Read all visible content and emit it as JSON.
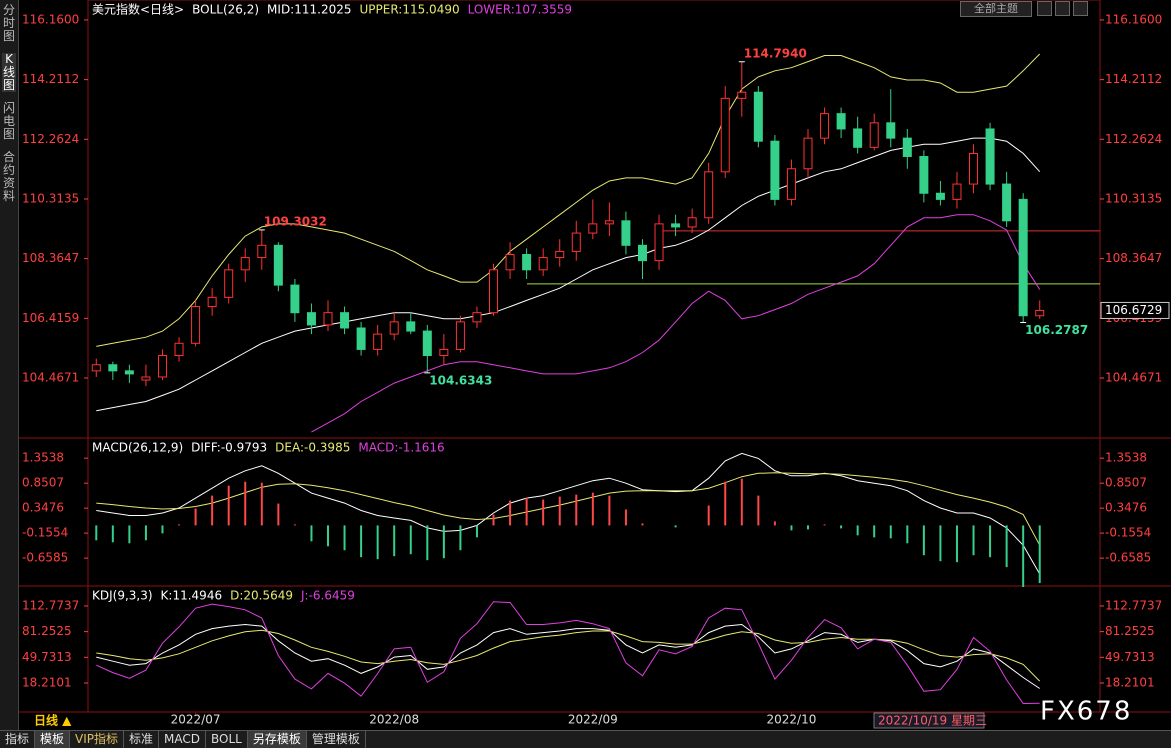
{
  "ui": {
    "side_tabs": [
      "分时图",
      "K线图",
      "闪电图",
      "合约资料"
    ],
    "toolbar_select": "全部主题",
    "period": "日线 ▲",
    "crosshair_date": "2022/10/19 星期三",
    "watermark": "FX678",
    "bottom_tabs": [
      "指标",
      "模板",
      "VIP指标",
      "标准",
      "MACD",
      "BOLL",
      "另存模板",
      "管理模板"
    ]
  },
  "chart_data": [
    {
      "type": "candlestick",
      "title": "美元指数<日线>",
      "indicator": "BOLL(26,2)",
      "up_color": "#ff3232",
      "down_color": "#35d08a",
      "grid": false,
      "last_price_label": true,
      "ylim": [
        102.54,
        116.55
      ],
      "yticks": [
        {
          "value": 116.16,
          "label": "116.1600"
        },
        114.2112,
        112.2624,
        110.3135,
        108.3647,
        106.4159,
        104.4671
      ],
      "categories": [
        null,
        null,
        null,
        null,
        null,
        null,
        "2022/07",
        null,
        null,
        null,
        null,
        null,
        null,
        null,
        null,
        null,
        null,
        null,
        "2022/08",
        null,
        null,
        null,
        null,
        null,
        null,
        null,
        null,
        null,
        null,
        null,
        "2022/09",
        null,
        null,
        null,
        null,
        null,
        null,
        null,
        null,
        null,
        null,
        null,
        "2022/10",
        null,
        null,
        null,
        null,
        null,
        null,
        null,
        null,
        null,
        null,
        null,
        null,
        null,
        null,
        null
      ],
      "open": [
        104.7,
        104.9,
        104.7,
        104.4,
        104.5,
        105.2,
        105.6,
        106.8,
        107.1,
        108.0,
        108.4,
        108.8,
        107.5,
        106.6,
        106.2,
        106.6,
        106.1,
        105.4,
        105.9,
        106.3,
        106.0,
        105.2,
        105.4,
        106.3,
        106.6,
        108.0,
        108.5,
        108.0,
        108.4,
        108.6,
        109.2,
        109.5,
        109.6,
        108.8,
        108.3,
        109.5,
        109.4,
        109.7,
        111.2,
        113.6,
        113.8,
        112.2,
        110.3,
        111.3,
        112.3,
        113.1,
        112.6,
        112.0,
        112.8,
        112.3,
        111.7,
        110.5,
        110.3,
        110.8,
        112.6,
        110.8,
        110.3,
        106.5
      ],
      "high": [
        105.1,
        105.0,
        104.9,
        104.9,
        105.4,
        105.8,
        107.0,
        107.4,
        108.2,
        108.7,
        109.3032,
        108.9,
        107.7,
        106.9,
        107.0,
        106.8,
        106.3,
        106.2,
        106.6,
        106.6,
        106.2,
        105.9,
        106.5,
        106.8,
        108.2,
        108.9,
        108.7,
        108.7,
        109.0,
        109.6,
        110.3,
        110.2,
        109.9,
        109.0,
        109.8,
        109.8,
        110.0,
        111.5,
        114.0,
        114.794,
        114.0,
        112.4,
        111.6,
        112.6,
        113.3,
        113.3,
        113.0,
        113.1,
        113.9,
        112.6,
        111.9,
        110.9,
        111.2,
        112.1,
        112.8,
        111.2,
        110.5,
        107.0
      ],
      "low": [
        104.5,
        104.4,
        104.3,
        104.2,
        104.4,
        105.0,
        105.5,
        106.5,
        106.9,
        107.6,
        108.0,
        107.3,
        106.3,
        105.9,
        106.0,
        105.9,
        105.2,
        105.2,
        105.7,
        105.9,
        104.6343,
        104.9,
        105.3,
        106.1,
        106.5,
        107.7,
        107.7,
        107.8,
        108.1,
        108.3,
        109.0,
        109.1,
        108.5,
        107.7,
        108.0,
        109.1,
        109.2,
        109.5,
        111.0,
        113.0,
        112.0,
        110.1,
        110.1,
        111.0,
        112.1,
        112.3,
        111.8,
        111.9,
        112.0,
        111.3,
        110.2,
        110.1,
        110.0,
        110.5,
        110.6,
        109.4,
        106.2787,
        106.4
      ],
      "close": [
        104.9,
        104.7,
        104.6,
        104.5,
        105.2,
        105.6,
        106.8,
        107.1,
        108.0,
        108.4,
        108.8,
        107.5,
        106.6,
        106.2,
        106.6,
        106.1,
        105.4,
        105.9,
        106.3,
        106.0,
        105.2,
        105.4,
        106.3,
        106.6,
        108.0,
        108.5,
        108.0,
        108.4,
        108.6,
        109.2,
        109.5,
        109.6,
        108.8,
        108.3,
        109.5,
        109.4,
        109.7,
        111.2,
        113.6,
        113.8,
        112.2,
        110.3,
        111.3,
        112.3,
        113.1,
        112.6,
        112.0,
        112.8,
        112.3,
        111.7,
        110.5,
        110.3,
        110.8,
        111.8,
        110.8,
        109.6,
        106.5,
        106.6729
      ],
      "series": [
        {
          "name": "MID:111.2025",
          "color": "#ffffff",
          "values": [
            103.4,
            103.5,
            103.6,
            103.7,
            103.9,
            104.1,
            104.4,
            104.7,
            105.0,
            105.3,
            105.6,
            105.8,
            106.0,
            106.1,
            106.2,
            106.3,
            106.4,
            106.5,
            106.6,
            106.6,
            106.5,
            106.4,
            106.4,
            106.5,
            106.6,
            106.8,
            107.0,
            107.2,
            107.4,
            107.7,
            108.0,
            108.2,
            108.4,
            108.5,
            108.7,
            108.8,
            109.0,
            109.3,
            109.7,
            110.1,
            110.4,
            110.6,
            110.8,
            111.0,
            111.2,
            111.3,
            111.5,
            111.7,
            111.9,
            112.0,
            112.1,
            112.1,
            112.2,
            112.3,
            112.3,
            112.2,
            111.8,
            111.2025
          ]
        },
        {
          "name": "UPPER:115.0490",
          "color": "#e8e870",
          "values": [
            105.5,
            105.6,
            105.7,
            105.8,
            106.0,
            106.4,
            107.0,
            107.8,
            108.5,
            109.1,
            109.4,
            109.5,
            109.5,
            109.4,
            109.3,
            109.2,
            109.0,
            108.8,
            108.6,
            108.3,
            108.0,
            107.8,
            107.6,
            107.6,
            108.0,
            108.6,
            109.0,
            109.4,
            109.8,
            110.2,
            110.6,
            110.9,
            111.0,
            111.0,
            110.9,
            110.8,
            111.0,
            111.8,
            113.0,
            113.9,
            114.3,
            114.5,
            114.6,
            114.8,
            115.0,
            115.0,
            114.8,
            114.6,
            114.3,
            114.2,
            114.2,
            114.1,
            113.8,
            113.8,
            113.9,
            114.0,
            114.5,
            115.049
          ]
        },
        {
          "name": "LOWER:107.3559",
          "color": "#e040e0",
          "values": [
            null,
            null,
            null,
            null,
            null,
            null,
            null,
            null,
            null,
            null,
            null,
            null,
            null,
            102.7,
            103.0,
            103.3,
            103.7,
            104.0,
            104.3,
            104.5,
            104.7,
            104.9,
            105.0,
            105.0,
            104.9,
            104.8,
            104.7,
            104.6,
            104.6,
            104.6,
            104.7,
            104.8,
            105.0,
            105.3,
            105.7,
            106.3,
            106.9,
            107.3,
            107.0,
            106.4,
            106.5,
            106.7,
            106.9,
            107.2,
            107.4,
            107.6,
            107.8,
            108.2,
            108.8,
            109.4,
            109.7,
            109.7,
            109.8,
            109.8,
            109.6,
            109.3,
            108.2,
            107.3559
          ]
        }
      ],
      "annotations": [
        109.3032,
        {
          "value": 114.794,
          "label": "114.7940"
        },
        104.6343,
        106.2787
      ],
      "hlines": [
        {
          "value": 109.27,
          "color": "#e03030"
        },
        {
          "value": 107.54,
          "color": "#a0e040"
        }
      ]
    },
    {
      "type": "macd",
      "title": "MACD(26,12,9)",
      "ylim": [
        -1.2,
        1.72
      ],
      "yticks": [
        1.3538,
        0.8507,
        0.3476,
        -0.1554,
        -0.6585
      ],
      "series": [
        {
          "name": "DIFF:-0.9793",
          "color": "#ffffff",
          "style": "line",
          "values": [
            0.3,
            0.25,
            0.2,
            0.2,
            0.25,
            0.35,
            0.55,
            0.75,
            0.95,
            1.1,
            1.2,
            1.05,
            0.85,
            0.65,
            0.55,
            0.45,
            0.3,
            0.2,
            0.15,
            0.1,
            -0.05,
            -0.12,
            -0.1,
            0.0,
            0.25,
            0.45,
            0.55,
            0.6,
            0.7,
            0.8,
            0.9,
            0.95,
            0.85,
            0.72,
            0.7,
            0.68,
            0.7,
            0.95,
            1.3,
            1.45,
            1.35,
            1.1,
            1.0,
            1.0,
            1.05,
            1.0,
            0.9,
            0.85,
            0.8,
            0.7,
            0.5,
            0.35,
            0.25,
            0.25,
            0.15,
            -0.05,
            -0.4,
            -0.9793
          ]
        },
        {
          "name": "DEA:-0.3985",
          "color": "#e8e870",
          "style": "line",
          "values": [
            0.45,
            0.42,
            0.38,
            0.35,
            0.33,
            0.34,
            0.38,
            0.45,
            0.55,
            0.66,
            0.77,
            0.83,
            0.84,
            0.81,
            0.76,
            0.7,
            0.62,
            0.54,
            0.46,
            0.39,
            0.3,
            0.21,
            0.15,
            0.12,
            0.14,
            0.2,
            0.27,
            0.34,
            0.41,
            0.49,
            0.57,
            0.65,
            0.69,
            0.7,
            0.7,
            0.7,
            0.7,
            0.75,
            0.86,
            0.98,
            1.05,
            1.06,
            1.05,
            1.04,
            1.04,
            1.03,
            1.0,
            0.97,
            0.93,
            0.88,
            0.8,
            0.71,
            0.62,
            0.55,
            0.47,
            0.37,
            0.22,
            -0.3985
          ]
        },
        {
          "name": "MACD:-1.1616",
          "color": "#e040e0",
          "style": "bar",
          "up_color": "#ff4848",
          "down_color": "#35d08a",
          "values": [
            -0.3,
            -0.34,
            -0.36,
            -0.3,
            -0.16,
            0.02,
            0.34,
            0.6,
            0.8,
            0.88,
            0.86,
            0.44,
            0.02,
            -0.32,
            -0.42,
            -0.5,
            -0.64,
            -0.68,
            -0.62,
            -0.58,
            -0.7,
            -0.66,
            -0.5,
            -0.24,
            0.22,
            0.5,
            0.56,
            0.52,
            0.58,
            0.62,
            0.66,
            0.6,
            0.32,
            0.04,
            0.0,
            -0.04,
            0.0,
            0.4,
            0.88,
            0.94,
            0.6,
            0.08,
            -0.1,
            -0.08,
            0.02,
            -0.06,
            -0.2,
            -0.24,
            -0.26,
            -0.36,
            -0.6,
            -0.72,
            -0.74,
            -0.6,
            -0.64,
            -0.84,
            -1.24,
            -1.1616
          ]
        }
      ]
    },
    {
      "type": "kdj",
      "title": "KDJ(9,3,3)",
      "ylim": [
        -17.4,
        134.8
      ],
      "yticks": [
        112.7737,
        81.2525,
        49.7313,
        18.2101
      ],
      "series": [
        {
          "name": "K:11.4946",
          "color": "#ffffff",
          "style": "line",
          "values": [
            50,
            45,
            40,
            42,
            55,
            65,
            78,
            85,
            88,
            90,
            88,
            70,
            55,
            45,
            48,
            40,
            30,
            38,
            50,
            52,
            35,
            38,
            55,
            65,
            80,
            85,
            78,
            80,
            82,
            85,
            85,
            83,
            65,
            55,
            65,
            62,
            65,
            80,
            88,
            90,
            75,
            55,
            60,
            70,
            80,
            78,
            68,
            72,
            70,
            58,
            42,
            38,
            45,
            60,
            55,
            40,
            25,
            11.4946
          ]
        },
        {
          "name": "D:20.5649",
          "color": "#e8e870",
          "style": "line",
          "values": [
            55,
            52,
            48,
            46,
            49,
            54,
            62,
            70,
            76,
            81,
            83,
            79,
            71,
            62,
            57,
            51,
            44,
            42,
            45,
            47,
            43,
            41,
            46,
            52,
            61,
            69,
            72,
            75,
            77,
            80,
            82,
            82,
            76,
            69,
            68,
            66,
            66,
            71,
            77,
            81,
            79,
            71,
            67,
            68,
            72,
            74,
            72,
            72,
            71,
            67,
            59,
            52,
            50,
            53,
            54,
            49,
            41,
            20.5649
          ]
        },
        {
          "name": "J:-6.6459",
          "color": "#e040e0",
          "style": "line",
          "values": [
            40,
            31,
            24,
            34,
            67,
            87,
            110,
            115,
            112,
            108,
            98,
            52,
            23,
            11,
            30,
            18,
            2,
            30,
            60,
            62,
            19,
            32,
            73,
            91,
            118,
            117,
            90,
            90,
            92,
            95,
            91,
            85,
            43,
            27,
            59,
            54,
            63,
            98,
            110,
            108,
            67,
            23,
            46,
            74,
            96,
            86,
            60,
            72,
            68,
            40,
            8,
            10,
            35,
            74,
            57,
            22,
            -7,
            -6.6459
          ]
        }
      ]
    }
  ]
}
